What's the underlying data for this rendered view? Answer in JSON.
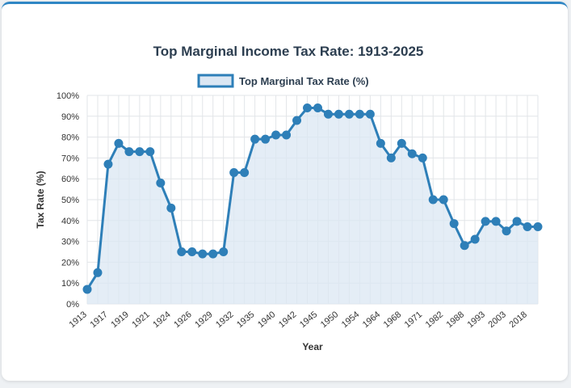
{
  "chart_data": {
    "type": "line",
    "title": "Top Marginal Income Tax Rate: 1913-2025",
    "legend": "Top Marginal Tax Rate (%)",
    "xlabel": "Year",
    "ylabel": "Tax Rate (%)",
    "ylim": [
      0,
      100
    ],
    "yticks": [
      "0%",
      "10%",
      "20%",
      "30%",
      "40%",
      "50%",
      "60%",
      "70%",
      "80%",
      "90%",
      "100%"
    ],
    "x": [
      "1913",
      "1916",
      "1917",
      "1918",
      "1919",
      "1920",
      "1921",
      "1922",
      "1924",
      "1925",
      "1926",
      "1928",
      "1929",
      "1930",
      "1932",
      "1934",
      "1935",
      "1936",
      "1940",
      "1941",
      "1942",
      "1944",
      "1945",
      "1946",
      "1950",
      "1952",
      "1954",
      "1960",
      "1964",
      "1965",
      "1968",
      "1970",
      "1971",
      "1977",
      "1982",
      "1987",
      "1988",
      "1991",
      "1993",
      "2000",
      "2003",
      "2010",
      "2018",
      "2025"
    ],
    "xtick_labels": [
      "1913",
      "1917",
      "1919",
      "1921",
      "1924",
      "1926",
      "1929",
      "1932",
      "1935",
      "1940",
      "1942",
      "1945",
      "1950",
      "1954",
      "1964",
      "1968",
      "1971",
      "1982",
      "1988",
      "1993",
      "2003",
      "2018"
    ],
    "values": [
      7,
      15,
      67,
      77,
      73,
      73,
      73,
      58,
      46,
      25,
      25,
      24,
      24,
      25,
      63,
      63,
      79,
      79,
      81,
      81,
      88,
      94,
      94,
      91,
      91,
      91,
      91,
      91,
      77,
      70,
      77,
      72,
      70,
      50,
      50,
      38.5,
      28,
      31,
      39.6,
      39.6,
      35,
      39.6,
      37,
      37
    ],
    "colors": {
      "line": "#2e7fb8",
      "fill": "#dbe7f3",
      "grid": "#e2e5e8"
    }
  }
}
